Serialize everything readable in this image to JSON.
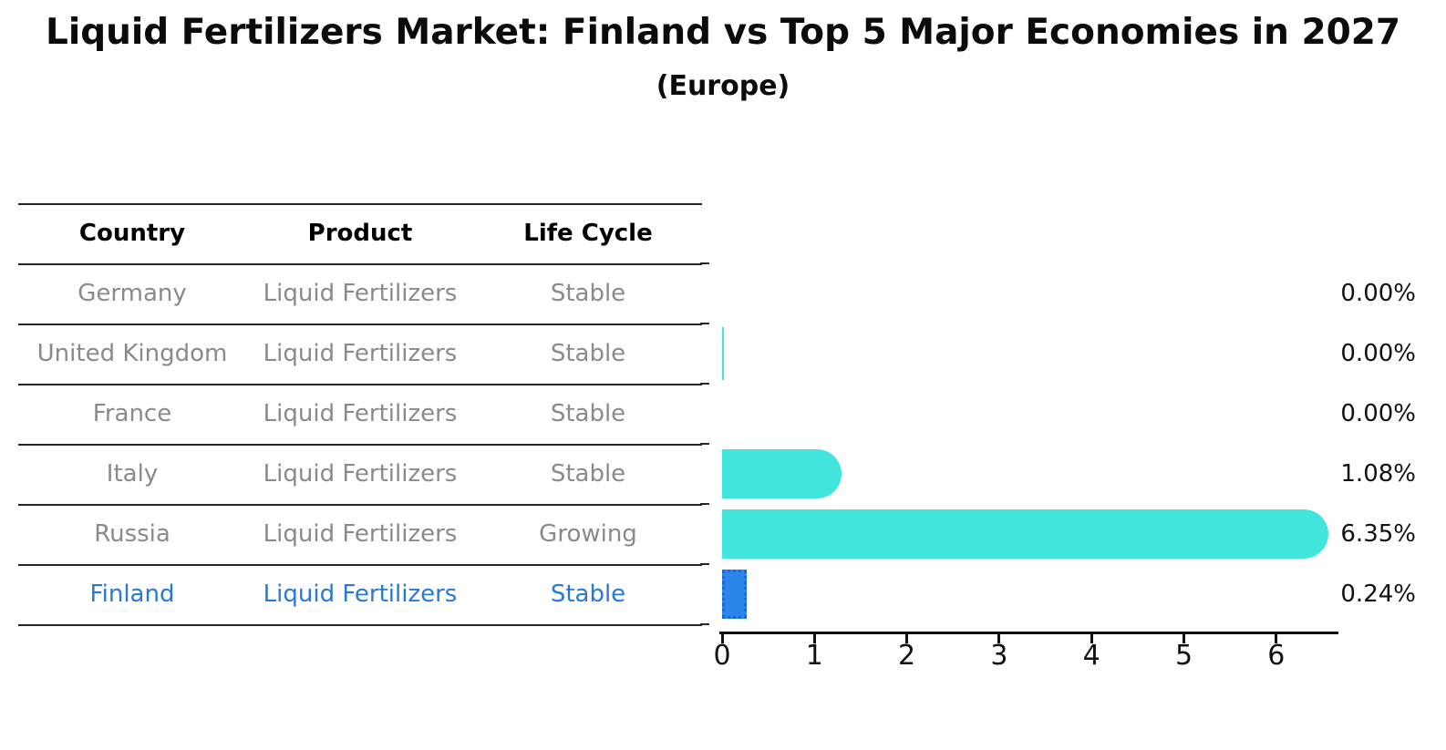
{
  "title": "Liquid Fertilizers Market: Finland vs Top 5 Major Economies in 2027",
  "subtitle": "(Europe)",
  "table": {
    "headers": [
      "Country",
      "Product",
      "Life Cycle"
    ],
    "rows": [
      {
        "country": "Germany",
        "product": "Liquid Fertilizers",
        "life_cycle": "Stable",
        "highlight": false
      },
      {
        "country": "United Kingdom",
        "product": "Liquid Fertilizers",
        "life_cycle": "Stable",
        "highlight": false
      },
      {
        "country": "France",
        "product": "Liquid Fertilizers",
        "life_cycle": "Stable",
        "highlight": false
      },
      {
        "country": "Italy",
        "product": "Liquid Fertilizers",
        "life_cycle": "Stable",
        "highlight": false
      },
      {
        "country": "Russia",
        "product": "Liquid Fertilizers",
        "life_cycle": "Growing",
        "highlight": false
      },
      {
        "country": "Finland",
        "product": "Liquid Fertilizers",
        "life_cycle": "Stable",
        "highlight": true
      }
    ]
  },
  "chart_data": {
    "type": "bar",
    "orientation": "horizontal",
    "title": "Liquid Fertilizers Market: Finland vs Top 5 Major Economies in 2027 (Europe)",
    "categories": [
      "Germany",
      "United Kingdom",
      "France",
      "Italy",
      "Russia",
      "Finland"
    ],
    "values": [
      0.0,
      0.0,
      0.0,
      1.08,
      6.35,
      0.24
    ],
    "value_labels": [
      "0.00%",
      "0.00%",
      "0.00%",
      "1.08%",
      "6.35%",
      "0.24%"
    ],
    "x_ticks": [
      "0",
      "1",
      "2",
      "3",
      "4",
      "5",
      "6"
    ],
    "xlim": [
      0,
      6.67
    ],
    "grid": false,
    "legend": false
  },
  "colors": {
    "bar_teal": "#42E5DE",
    "finland_bar_fill": "#2B86EC",
    "finland_bar_border": "#1A67DB",
    "highlight_text": "#2878DB",
    "row_text": "#8A8A8A",
    "header_text": "#000000",
    "axis_black": "#111111"
  }
}
